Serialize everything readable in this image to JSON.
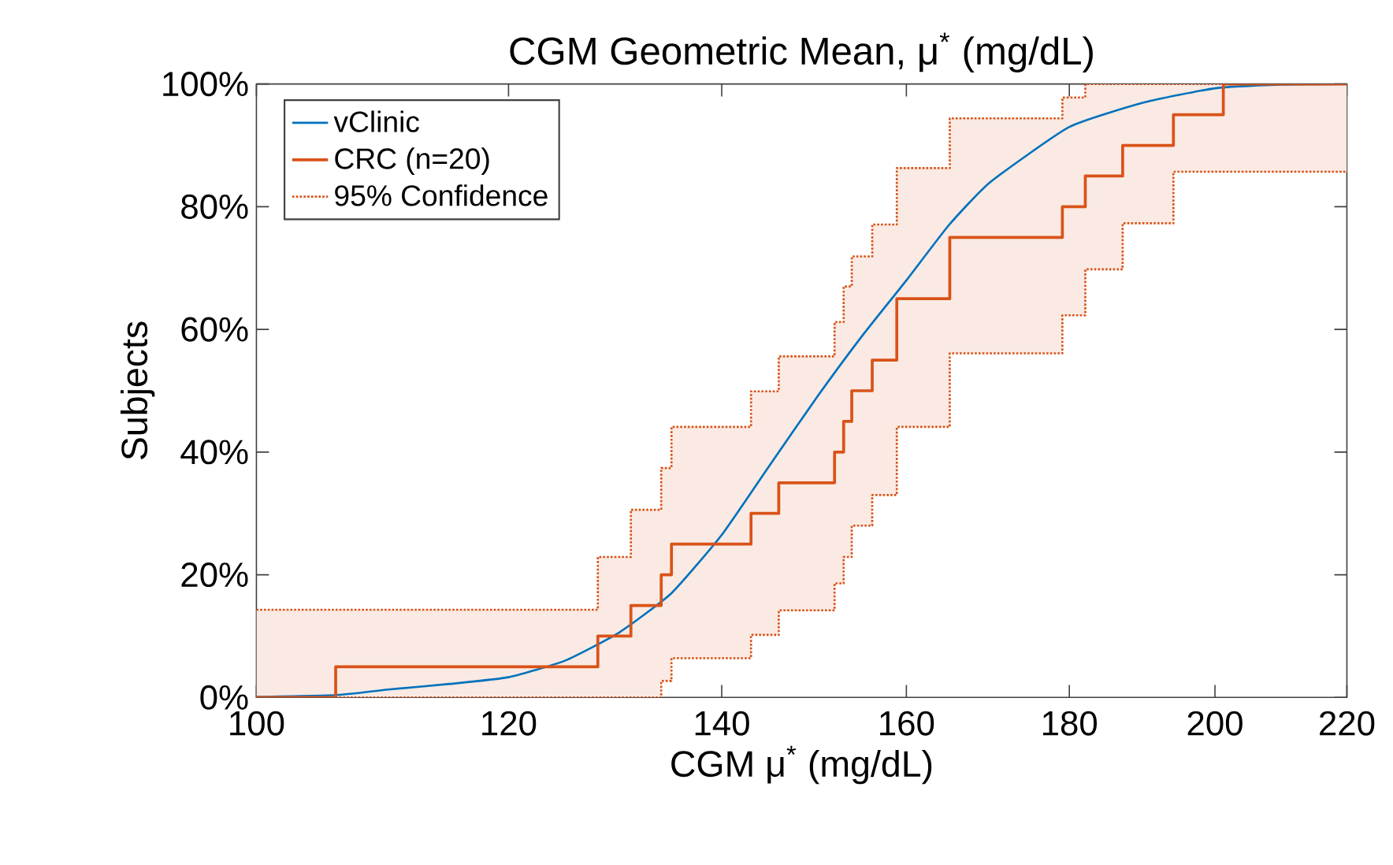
{
  "chart_data": {
    "type": "step",
    "title": "CGM Geometric Mean, μ$^{*}$ (mg/dL)",
    "xlabel": "CGM μ$^{*}$ (mg/dL)",
    "ylabel": "Subjects",
    "log": "x",
    "grid": false,
    "legend": "top left",
    "xlim": [
      100,
      220
    ],
    "xticks": [
      100,
      120,
      140,
      160,
      180,
      200,
      220
    ],
    "ylim": [
      0,
      100
    ],
    "yticks": [
      {
        "value": 0,
        "label": "0%"
      },
      {
        "value": 20,
        "label": "20%"
      },
      {
        "value": 40,
        "label": "40%"
      },
      {
        "value": 60,
        "label": "60%"
      },
      {
        "value": 80,
        "label": "80%"
      },
      {
        "value": 100,
        "label": "100%"
      }
    ],
    "series": [
      {
        "name": "vClinic",
        "type": "line",
        "color": "#0072bd",
        "x": [
          100,
          106,
          110,
          115,
          120,
          125,
          130,
          135,
          140,
          145,
          150,
          155,
          160,
          165,
          170,
          180,
          190,
          200,
          210,
          220
        ],
        "values": [
          0.1,
          0.4,
          1.3,
          2.2,
          3.3,
          6,
          10.6,
          17,
          26.5,
          38,
          49,
          59,
          68,
          77,
          84,
          93,
          97,
          99.3,
          99.9,
          100
        ]
      },
      {
        "name": "CRC (n=20)",
        "color": "#d95319",
        "x": [
          100,
          105.9,
          128.0,
          131.1,
          134.0,
          135.0,
          143.0,
          145.9,
          151.9,
          152.9,
          153.8,
          156.1,
          158.9,
          165.1,
          179.1,
          182.1,
          187.1,
          194.1,
          201.2,
          220
        ],
        "values": [
          0,
          5,
          10,
          15,
          20,
          25,
          30,
          35,
          40,
          45,
          50,
          55,
          65,
          75,
          80,
          85,
          90,
          95,
          100,
          100
        ],
        "lower": [
          0,
          0,
          0,
          0,
          2.7,
          6.4,
          10.2,
          14.2,
          18.6,
          22.9,
          28.0,
          33.0,
          44.1,
          56.1,
          62.3,
          69.8,
          77.3,
          85.7,
          85.7,
          85.7
        ],
        "upper": [
          14.3,
          14.3,
          22.9,
          30.6,
          37.4,
          44.1,
          49.9,
          55.6,
          61.2,
          67.0,
          71.9,
          77.1,
          86.3,
          94.4,
          97.8,
          100,
          100,
          100,
          100,
          100
        ]
      },
      {
        "name": "95% Confidence",
        "color": "#d95319",
        "line_style": "dotted",
        "x": [
          100,
          105.9,
          128.0,
          131.1,
          134.0,
          135.0,
          143.0,
          145.9,
          151.9,
          152.9,
          153.8,
          156.1,
          158.9,
          165.1,
          179.1,
          182.1,
          187.1,
          194.1,
          201.2,
          220
        ],
        "values": [
          14.3,
          14.3,
          22.9,
          30.6,
          37.4,
          44.1,
          49.9,
          55.6,
          61.2,
          67.0,
          71.9,
          77.1,
          86.3,
          94.4,
          97.8,
          100,
          100,
          100,
          100,
          100
        ]
      },
      {
        "color": "#d95319",
        "line_style": "dotted",
        "x": [
          100,
          105.9,
          128.0,
          131.1,
          134.0,
          135.0,
          143.0,
          145.9,
          151.9,
          152.9,
          153.8,
          156.1,
          158.9,
          165.1,
          179.1,
          182.1,
          187.1,
          194.1,
          201.2,
          220
        ],
        "values": [
          0,
          0,
          0,
          0,
          2.7,
          6.4,
          10.2,
          14.2,
          18.6,
          22.9,
          28.0,
          33.0,
          44.1,
          56.1,
          62.3,
          69.8,
          77.3,
          85.7,
          85.7,
          85.7
        ]
      }
    ]
  }
}
